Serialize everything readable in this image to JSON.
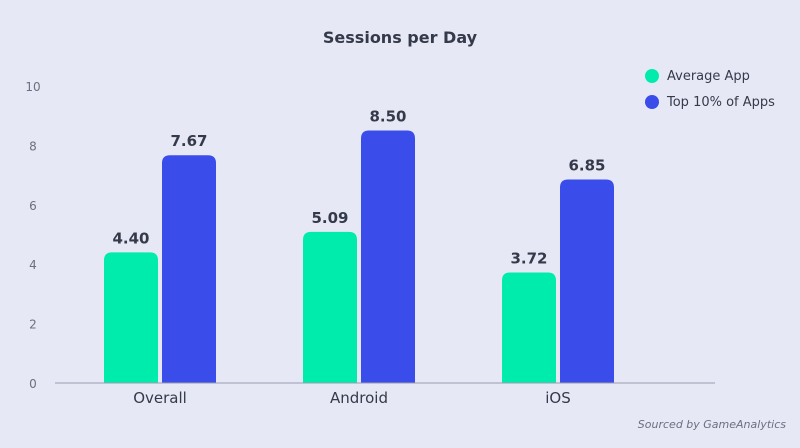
{
  "chart_data": {
    "type": "bar",
    "title": "Sessions per Day",
    "categories": [
      "Overall",
      "Android",
      "iOS"
    ],
    "series": [
      {
        "name": "Average App",
        "values": [
          4.4,
          5.09,
          3.72
        ],
        "color": "#00ecac"
      },
      {
        "name": "Top 10% of Apps",
        "values": [
          7.67,
          8.5,
          6.85
        ],
        "color": "#3a4cea"
      }
    ],
    "ylim": [
      0,
      10
    ],
    "yticks": [
      0,
      2,
      4,
      6,
      8,
      10
    ],
    "grid": false,
    "legend_position": "top-right",
    "xlabel": "",
    "ylabel": ""
  },
  "source_note": "Sourced by GameAnalytics"
}
